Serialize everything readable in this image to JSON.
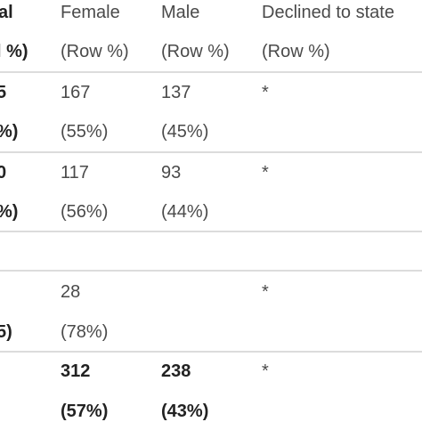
{
  "header": {
    "total_top": "al",
    "total_bottom": "l %)",
    "female_top": "Female",
    "female_bottom": "(Row %)",
    "male_top": "Male",
    "male_bottom": "(Row %)",
    "declined_top": "Declined to state",
    "declined_bottom": "(Row %)"
  },
  "rows": [
    {
      "total_top": "5",
      "total_bottom": "%)",
      "female_count": "167",
      "female_pct": "(55%)",
      "male_count": "137",
      "male_pct": "(45%)",
      "declined": "*"
    },
    {
      "total_top": "0",
      "total_bottom": "%)",
      "female_count": "117",
      "female_pct": "(56%)",
      "male_count": "93",
      "male_pct": "(44%)",
      "declined": "*"
    },
    {
      "total_bottom": "5)",
      "female_count": "28",
      "female_pct": "(78%)",
      "declined": "*"
    },
    {
      "female_count": "312",
      "female_pct": "(57%)",
      "male_count": "238",
      "male_pct": "(43%)",
      "declined": "*"
    }
  ]
}
